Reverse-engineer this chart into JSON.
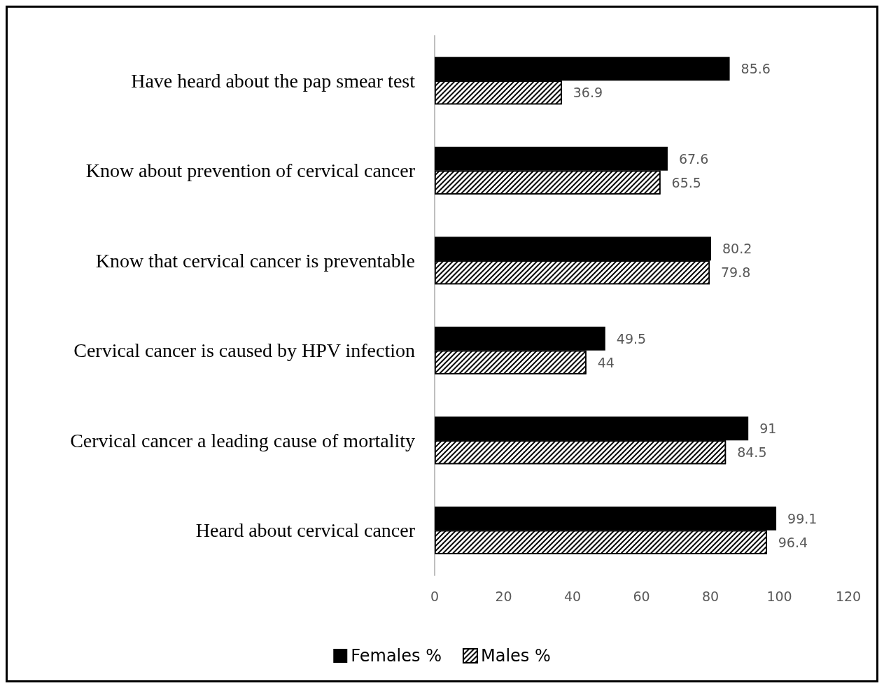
{
  "chart_data": {
    "type": "bar",
    "orientation": "horizontal",
    "categories": [
      "Have heard about the pap smear test",
      "Know about prevention of cervical cancer",
      "Know that cervical cancer is preventable",
      "Cervical cancer is caused by HPV infection",
      "Cervical cancer a leading cause of mortality",
      "Heard about cervical cancer"
    ],
    "series": [
      {
        "name": "Females %",
        "color": "#000000",
        "values": [
          85.6,
          67.6,
          80.2,
          49.5,
          91,
          99.1
        ]
      },
      {
        "name": "Males %",
        "color": "#000000",
        "values": [
          36.9,
          65.5,
          79.8,
          44,
          84.5,
          96.4
        ]
      }
    ],
    "xlim": [
      0,
      120
    ],
    "xticks": [
      0,
      20,
      40,
      60,
      80,
      100,
      120
    ],
    "data_labels": true,
    "grid": false,
    "legend": "bottom"
  }
}
